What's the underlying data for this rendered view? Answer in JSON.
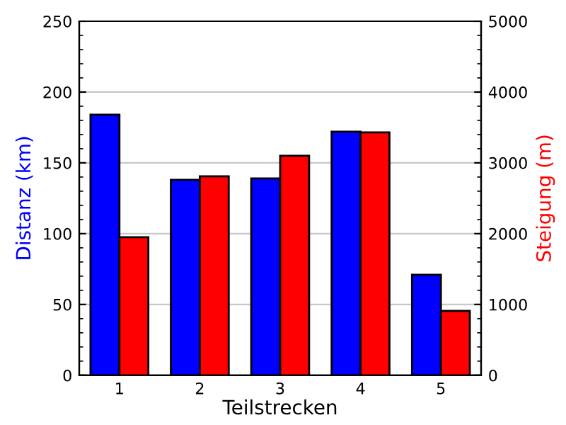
{
  "chart_data": {
    "type": "bar",
    "xlabel": "Teilstrecken",
    "ylabel": "Distanz (km)",
    "y2label": "Steigung (m)",
    "categories": [
      "1",
      "2",
      "3",
      "4",
      "5"
    ],
    "series": [
      {
        "color": "#0000ff",
        "values": [
          184,
          138,
          139,
          172,
          71
        ]
      },
      {
        "color": "#ff0000",
        "axis": "y2",
        "values": [
          1950,
          2810,
          3100,
          3430,
          910
        ]
      }
    ],
    "ylim": [
      0,
      250
    ],
    "yticks": [
      0,
      50,
      100,
      150,
      200,
      250
    ],
    "y2lim": [
      0,
      5000
    ],
    "y2ticks": [
      0,
      1000,
      2000,
      3000,
      4000,
      5000
    ],
    "grid": "y"
  }
}
